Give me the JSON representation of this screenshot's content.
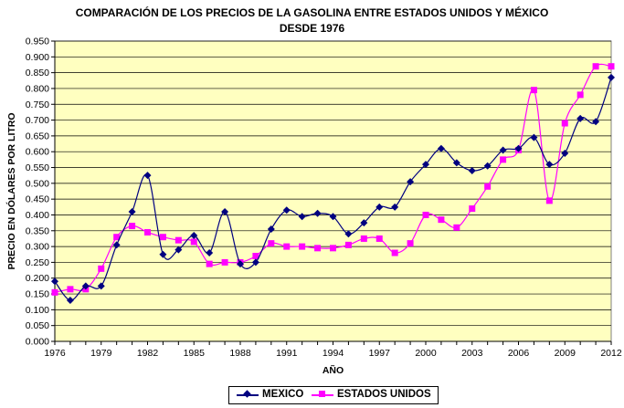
{
  "chart_data": {
    "type": "line",
    "title_line1": "COMPARACIÓN DE LOS PRECIOS DE LA GASOLINA ENTRE ESTADOS UNIDOS Y MÉXICO",
    "title_line2": "DESDE 1976",
    "xlabel": "AÑO",
    "ylabel": "PRECIO EN DÓLARES POR LITRO",
    "ylim": [
      0,
      0.95
    ],
    "xlim": [
      1976,
      2012
    ],
    "grid": true,
    "legend_position": "bottom-center",
    "plot_background": "#ffffc0",
    "x_tick_labels": [
      "1976",
      "1979",
      "1982",
      "1985",
      "1988",
      "1991",
      "1994",
      "1997",
      "2000",
      "2003",
      "2006",
      "2009",
      "2012"
    ],
    "y_tick_labels": [
      "0.000",
      "0.050",
      "0.100",
      "0.150",
      "0.200",
      "0.250",
      "0.300",
      "0.350",
      "0.400",
      "0.450",
      "0.500",
      "0.550",
      "0.600",
      "0.650",
      "0.700",
      "0.750",
      "0.800",
      "0.850",
      "0.900",
      "0.950"
    ],
    "x": [
      1976,
      1977,
      1978,
      1979,
      1980,
      1981,
      1982,
      1983,
      1984,
      1985,
      1986,
      1987,
      1988,
      1989,
      1990,
      1991,
      1992,
      1993,
      1994,
      1995,
      1996,
      1997,
      1998,
      1999,
      2000,
      2001,
      2002,
      2003,
      2004,
      2005,
      2006,
      2007,
      2008,
      2009,
      2010,
      2011,
      2012
    ],
    "series": [
      {
        "name": "MEXICO",
        "color": "#000080",
        "marker": "diamond",
        "values": [
          0.19,
          0.13,
          0.175,
          0.175,
          0.305,
          0.41,
          0.525,
          0.275,
          0.29,
          0.335,
          0.28,
          0.41,
          0.245,
          0.25,
          0.355,
          0.415,
          0.395,
          0.405,
          0.395,
          0.34,
          0.375,
          0.425,
          0.425,
          0.505,
          0.56,
          0.61,
          0.565,
          0.54,
          0.555,
          0.605,
          0.61,
          0.645,
          0.56,
          0.595,
          0.705,
          0.695,
          0.835
        ]
      },
      {
        "name": "ESTADOS UNIDOS",
        "color": "#ff00ff",
        "marker": "square",
        "values": [
          0.155,
          0.165,
          0.165,
          0.23,
          0.33,
          0.365,
          0.345,
          0.33,
          0.32,
          0.315,
          0.245,
          0.25,
          0.25,
          0.27,
          0.31,
          0.3,
          0.3,
          0.295,
          0.295,
          0.305,
          0.325,
          0.325,
          0.28,
          0.31,
          0.4,
          0.385,
          0.36,
          0.42,
          0.49,
          0.575,
          0.605,
          0.795,
          0.445,
          0.69,
          0.78,
          0.87,
          0.87
        ]
      }
    ]
  }
}
